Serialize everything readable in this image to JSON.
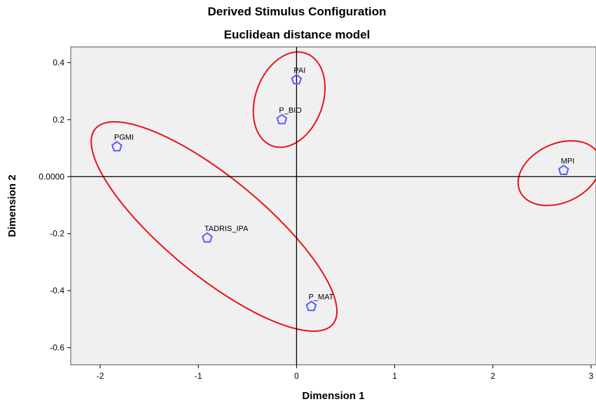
{
  "chart_data": {
    "type": "scatter",
    "title": "Derived Stimulus Configuration",
    "subtitle": "Euclidean distance model",
    "xlabel": "Dimension 1",
    "ylabel": "Dimension 2",
    "xlim": [
      -2.3,
      3.05
    ],
    "ylim": [
      -0.66,
      0.455
    ],
    "xticks": [
      -2,
      -1,
      0,
      1,
      2,
      3
    ],
    "xtick_labels": [
      "-2",
      "-1",
      "0",
      "1",
      "2",
      "3"
    ],
    "yticks": [
      0.4,
      0.2,
      0.0,
      -0.2,
      -0.4,
      -0.6
    ],
    "ytick_labels": [
      "0.4",
      "0.2",
      "0.0000",
      "-0.2",
      "-0.4",
      "-0.6"
    ],
    "grid": false,
    "reference_lines": {
      "x": 0,
      "y": 0
    },
    "points": [
      {
        "label": "PAI",
        "x": 0.0,
        "y": 0.34
      },
      {
        "label": "P_BIO",
        "x": -0.15,
        "y": 0.2
      },
      {
        "label": "PGMI",
        "x": -1.83,
        "y": 0.105
      },
      {
        "label": "MPI",
        "x": 2.72,
        "y": 0.022
      },
      {
        "label": "TADRIS_IPA",
        "x": -0.91,
        "y": -0.215
      },
      {
        "label": "P_MAT",
        "x": 0.15,
        "y": -0.455
      }
    ],
    "clusters": [
      {
        "members": [
          "PAI",
          "P_BIO"
        ],
        "color": "#e8131b"
      },
      {
        "members": [
          "PGMI",
          "TADRIS_IPA",
          "P_MAT"
        ],
        "color": "#e8131b"
      },
      {
        "members": [
          "MPI"
        ],
        "color": "#e8131b"
      }
    ],
    "colors": {
      "plot_background": "#f0f0f0",
      "marker": "#5b5bff",
      "cluster_outline": "#e8131b"
    }
  }
}
